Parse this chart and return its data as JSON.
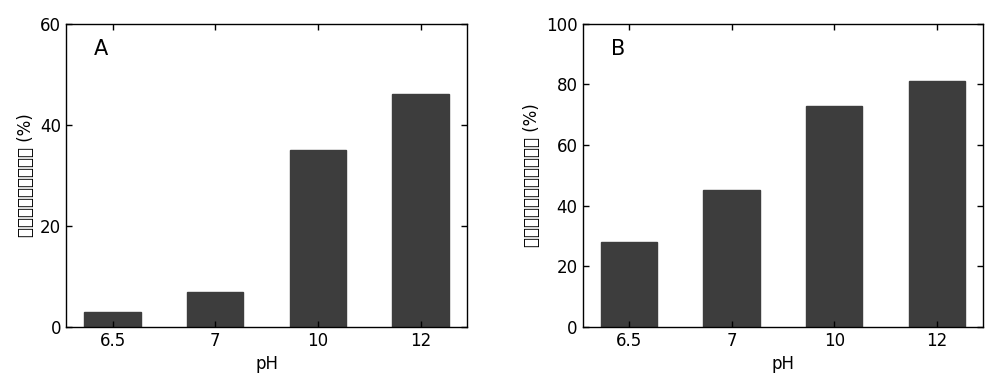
{
  "panel_A": {
    "label": "A",
    "categories": [
      "6.5",
      "7",
      "10",
      "12"
    ],
    "values": [
      3,
      7,
      35,
      46
    ],
    "ylabel": "总化学需氧量去除率 (%)",
    "xlabel": "pH",
    "ylim": [
      0,
      60
    ],
    "yticks": [
      0,
      20,
      40,
      60
    ],
    "bar_color": "#3d3d3d"
  },
  "panel_B": {
    "label": "B",
    "categories": [
      "6.5",
      "7",
      "10",
      "12"
    ],
    "values": [
      28,
      45,
      73,
      81
    ],
    "ylabel": "可溶性化学需氧量去除率 (%)",
    "xlabel": "pH",
    "ylim": [
      0,
      100
    ],
    "yticks": [
      0,
      20,
      40,
      60,
      80,
      100
    ],
    "bar_color": "#3d3d3d"
  },
  "figure_bg": "#ffffff",
  "label_fontsize": 12,
  "tick_fontsize": 12,
  "panel_label_fontsize": 15
}
